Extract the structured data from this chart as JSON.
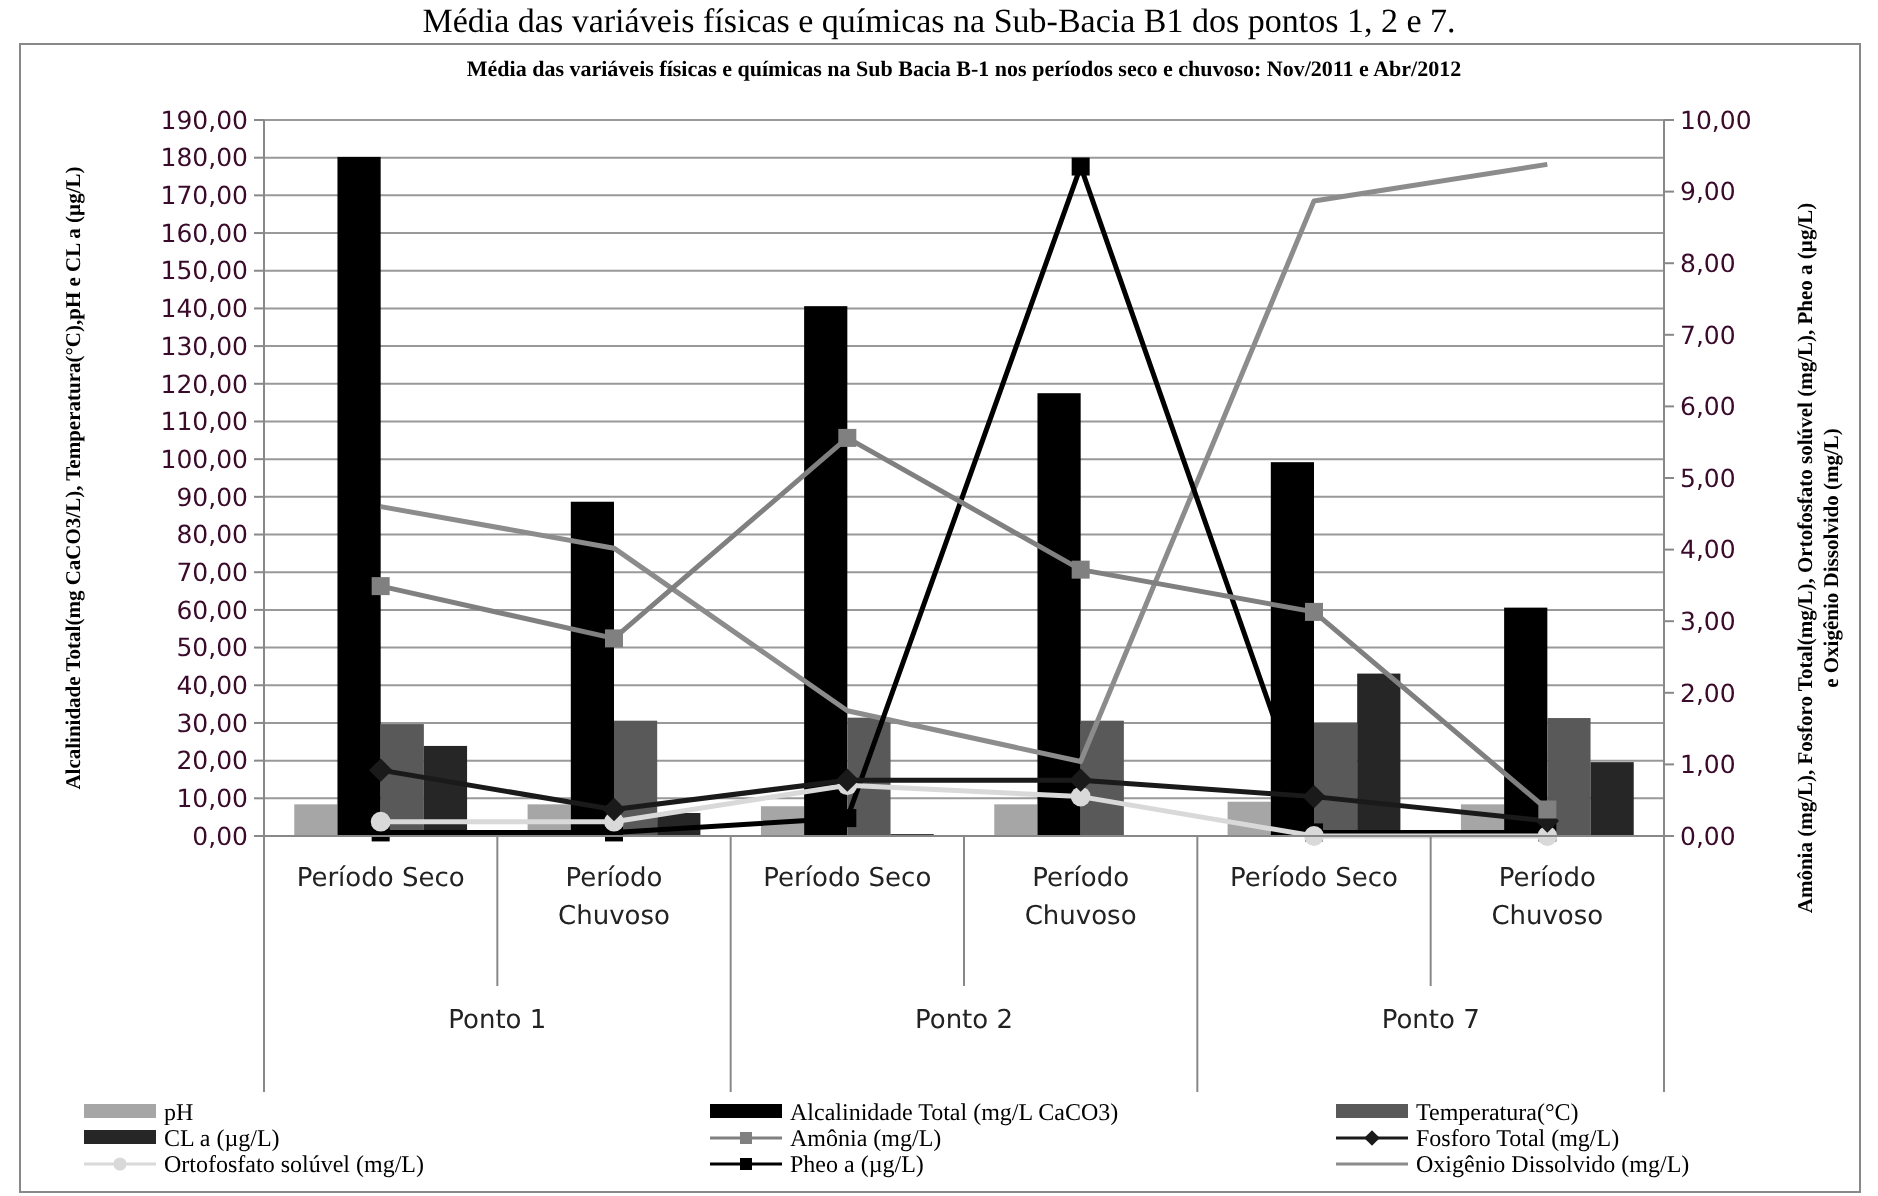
{
  "chart_data": {
    "type": "bar",
    "title": "Média das variáveis físicas e químicas na Sub-Bacia B1 dos pontos 1, 2 e 7.",
    "subtitle": "Média das variáveis físicas e químicas na Sub Bacia B-1 nos períodos seco e chuvoso: Nov/2011 e Abr/2012",
    "ylabel": "Alcalinidade Total(mg CaCO3/L), Temperatura(°C),pH e CL a (µg/L)",
    "y2label": "Amônia (mg/L), Fosforo Total(mg/L), Ortofosfato solúvel (mg/L), Pheo a (µg/L) e Oxigênio Dissolvido (mg/L)",
    "categories": [
      "Período Seco",
      "Período Chuvoso",
      "Período Seco",
      "Período Chuvoso",
      "Período Seco",
      "Período Chuvoso"
    ],
    "annotations": [
      "Ponto 1",
      "Ponto 2",
      "Ponto 7"
    ],
    "series": [
      {
        "name": "pH",
        "color": "#a6a6a6",
        "values": [
          8.4,
          8.4,
          7.9,
          8.4,
          9.1,
          8.4
        ]
      },
      {
        "name": "Alcalinidade Total (mg/L CaCO3)",
        "color": "#000000",
        "values": [
          180.2,
          88.7,
          140.6,
          117.5,
          99.2,
          60.6
        ]
      },
      {
        "name": "Temperatura(°C)",
        "color": "#595959",
        "values": [
          29.7,
          30.6,
          31.4,
          30.6,
          30.0,
          31.3
        ]
      },
      {
        "name": "CL a (µg/L)",
        "color": "#262626",
        "values": [
          23.9,
          6.1,
          0.5,
          0,
          43.1,
          19.6
        ]
      },
      {
        "name": "Amônia (mg/L)",
        "type": "line",
        "axis": "y2",
        "marker": "square",
        "color": "#808080",
        "values": [
          3.49,
          2.76,
          5.56,
          3.72,
          3.13,
          0.37
        ]
      },
      {
        "name": "Fosforo Total (mg/L)",
        "type": "line",
        "axis": "y2",
        "marker": "diamond",
        "color": "#1a1a1a",
        "values": [
          0.92,
          0.37,
          0.78,
          0.78,
          0.55,
          0.21
        ]
      },
      {
        "name": "Ortofosfato solúvel (mg/L)",
        "type": "line",
        "axis": "y2",
        "marker": "circle",
        "color": "#d9d9d9",
        "values": [
          0.2,
          0.2,
          0.71,
          0.55,
          0,
          0
        ]
      },
      {
        "name": "Pheo a (µg/L)",
        "type": "line",
        "axis": "y2",
        "marker": "square",
        "color": "#000000",
        "values": [
          0.05,
          0.05,
          0.25,
          9.35,
          0.05,
          0.05
        ]
      },
      {
        "name": "Oxigênio Dissolvido (mg/L)",
        "type": "line",
        "axis": "y2",
        "marker": "none",
        "color": "#8c8c8c",
        "values": [
          4.6,
          4.02,
          1.75,
          1.04,
          8.87,
          9.38
        ]
      }
    ],
    "ylim": [
      0,
      190
    ],
    "yticks": [
      {
        "value": 0,
        "label": "0,00"
      },
      {
        "value": 10,
        "label": "10,00"
      },
      {
        "value": 20,
        "label": "20,00"
      },
      {
        "value": 30,
        "label": "30,00"
      },
      {
        "value": 40,
        "label": "40,00"
      },
      {
        "value": 50,
        "label": "50,00"
      },
      {
        "value": 60,
        "label": "60,00"
      },
      {
        "value": 70,
        "label": "70,00"
      },
      {
        "value": 80,
        "label": "80,00"
      },
      {
        "value": 90,
        "label": "90,00"
      },
      {
        "value": 100,
        "label": "100,00"
      },
      {
        "value": 110,
        "label": "110,00"
      },
      {
        "value": 120,
        "label": "120,00"
      },
      {
        "value": 130,
        "label": "130,00"
      },
      {
        "value": 140,
        "label": "140,00"
      },
      {
        "value": 150,
        "label": "150,00"
      },
      {
        "value": 160,
        "label": "160,00"
      },
      {
        "value": 170,
        "label": "170,00"
      },
      {
        "value": 180,
        "label": "180,00"
      },
      {
        "value": 190,
        "label": "190,00"
      }
    ],
    "y2lim": [
      0,
      10
    ],
    "y2ticks": [
      {
        "value": 0,
        "label": "0,00"
      },
      {
        "value": 1,
        "label": "1,00"
      },
      {
        "value": 2,
        "label": "2,00"
      },
      {
        "value": 3,
        "label": "3,00"
      },
      {
        "value": 4,
        "label": "4,00"
      },
      {
        "value": 5,
        "label": "5,00"
      },
      {
        "value": 6,
        "label": "6,00"
      },
      {
        "value": 7,
        "label": "7,00"
      },
      {
        "value": 8,
        "label": "8,00"
      },
      {
        "value": 9,
        "label": "9,00"
      },
      {
        "value": 10,
        "label": "10,00"
      }
    ],
    "grid": "y",
    "legend": "bottom"
  }
}
